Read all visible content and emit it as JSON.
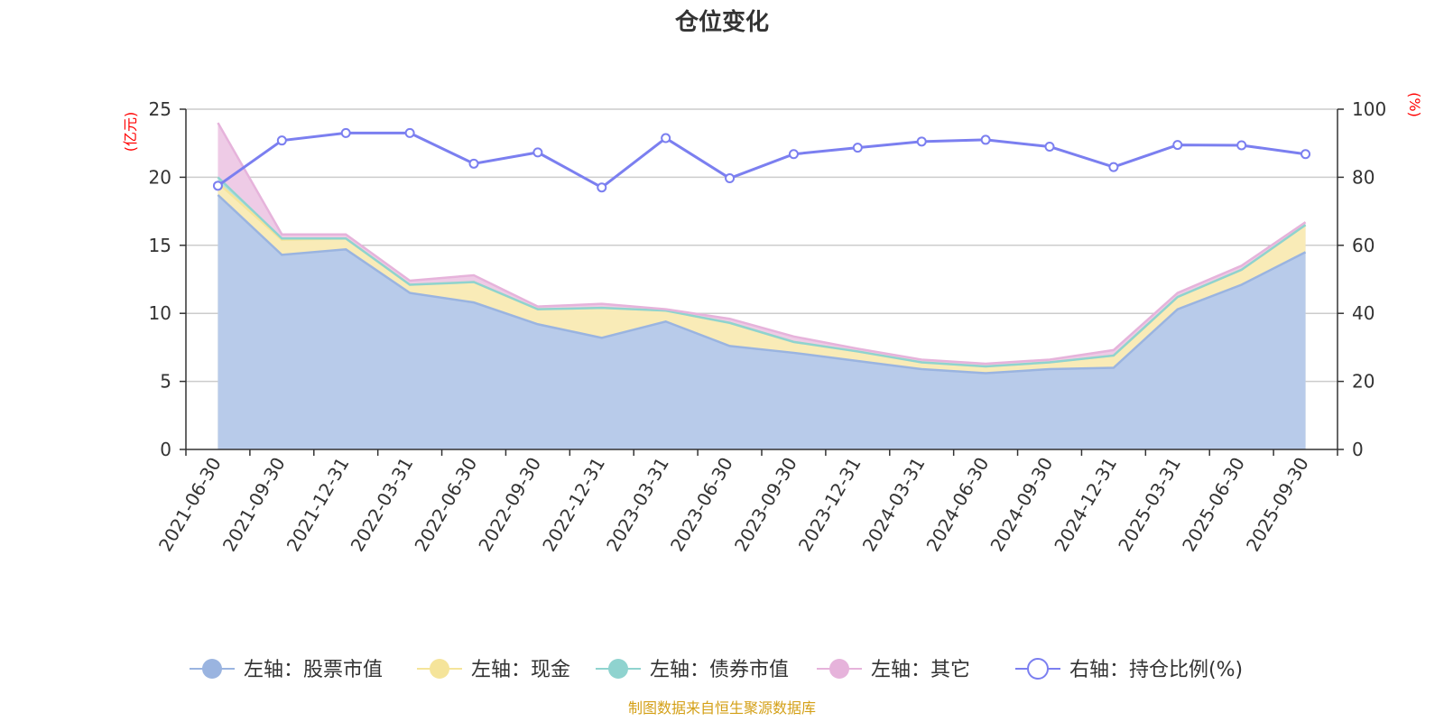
{
  "chart_data": {
    "type": "area",
    "title": "仓位变化",
    "source_note": "制图数据来自恒生聚源数据库",
    "left_axis": {
      "unit": "(亿元)",
      "ylim": [
        0,
        25
      ],
      "ticks": [
        0,
        5,
        10,
        15,
        20,
        25
      ]
    },
    "right_axis": {
      "unit": "(%)",
      "ylim": [
        0,
        100
      ],
      "ticks": [
        0,
        20,
        40,
        60,
        80,
        100
      ]
    },
    "categories": [
      "2021-06-30",
      "2021-09-30",
      "2021-12-31",
      "2022-03-31",
      "2022-06-30",
      "2022-09-30",
      "2022-12-31",
      "2023-03-31",
      "2023-06-30",
      "2023-09-30",
      "2023-12-31",
      "2024-03-31",
      "2024-06-30",
      "2024-09-30",
      "2024-12-31",
      "2025-03-31",
      "2025-06-30",
      "2025-09-30"
    ],
    "stacked_series": [
      {
        "name": "左轴：股票市值",
        "axis": "left",
        "color": "#9ab4e0",
        "fill": "#b8cbea",
        "values": [
          18.7,
          14.3,
          14.7,
          11.5,
          10.8,
          9.2,
          8.2,
          9.4,
          7.6,
          7.1,
          6.5,
          5.9,
          5.6,
          5.9,
          6.0,
          10.3,
          12.1,
          14.5
        ]
      },
      {
        "name": "左轴：现金",
        "axis": "left",
        "color": "#f5e49a",
        "fill": "#f9ebb7",
        "values": [
          0.9,
          1.1,
          0.8,
          0.6,
          1.5,
          1.1,
          2.2,
          0.8,
          1.7,
          0.8,
          0.7,
          0.5,
          0.5,
          0.5,
          0.9,
          0.9,
          1.1,
          2.0
        ]
      },
      {
        "name": "左轴：债券市值",
        "axis": "left",
        "color": "#8fd3cf",
        "fill": "#b6e2df",
        "values": [
          0.4,
          0.1,
          0,
          0,
          0,
          0,
          0,
          0,
          0,
          0,
          0,
          0,
          0,
          0,
          0,
          0,
          0,
          0
        ]
      },
      {
        "name": "左轴：其它",
        "axis": "left",
        "color": "#e6b3db",
        "fill": "#eecbe6",
        "values": [
          4.0,
          0.3,
          0.3,
          0.3,
          0.5,
          0.2,
          0.3,
          0.1,
          0.3,
          0.4,
          0.2,
          0.2,
          0.2,
          0.2,
          0.4,
          0.3,
          0.3,
          0.2
        ]
      }
    ],
    "line_series": {
      "name": "右轴：持仓比例(%)",
      "axis": "right",
      "color": "#7b7ff0",
      "values": [
        77.5,
        90.8,
        93.0,
        93.0,
        84.0,
        87.3,
        77.0,
        91.5,
        79.7,
        86.8,
        88.7,
        90.5,
        91.0,
        89.0,
        83.0,
        89.5,
        89.4,
        86.8
      ]
    },
    "legend": [
      {
        "label": "左轴：股票市值",
        "marker": "filled-circle",
        "color": "#9ab4e0"
      },
      {
        "label": "左轴：现金",
        "marker": "filled-circle",
        "color": "#f5e49a"
      },
      {
        "label": "左轴：债券市值",
        "marker": "filled-circle",
        "color": "#8fd3cf"
      },
      {
        "label": "左轴：其它",
        "marker": "filled-circle",
        "color": "#e6b3db"
      },
      {
        "label": "右轴：持仓比例(%)",
        "marker": "hollow-circle",
        "color": "#7b7ff0"
      }
    ],
    "grid": true,
    "legend_position": "bottom"
  }
}
